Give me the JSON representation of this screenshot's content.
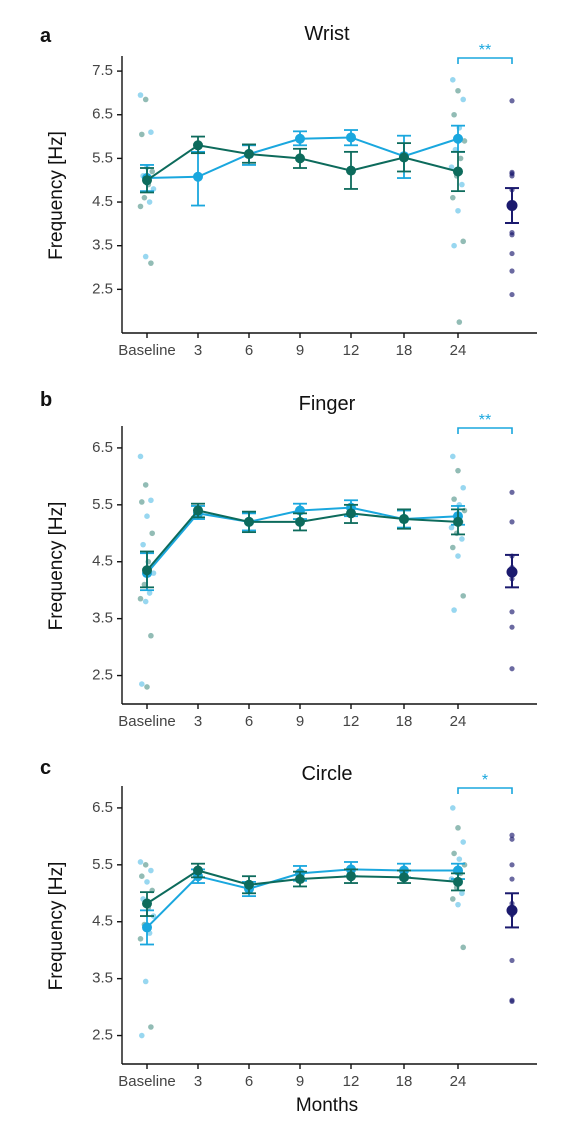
{
  "figure": {
    "xlabel": "Months"
  },
  "colors": {
    "seriesA": "#1aa7de",
    "seriesB": "#0d6b5c",
    "control": "#1b1a6e"
  },
  "chart_data": [
    {
      "letter": "a",
      "title": "Wrist",
      "type": "line",
      "ylabel": "Frequency [Hz]",
      "ylim": [
        1.5,
        7.8
      ],
      "yticks": [
        2.5,
        3.5,
        4.5,
        5.5,
        6.5,
        7.5
      ],
      "categories": [
        "Baseline",
        "3",
        "6",
        "9",
        "12",
        "18",
        "24"
      ],
      "significance": "**",
      "series": [
        {
          "key": "A",
          "color": "#1aa7de",
          "values": [
            5.05,
            5.08,
            5.6,
            5.95,
            5.98,
            5.55,
            5.95
          ],
          "err_low": [
            4.75,
            4.42,
            5.35,
            5.8,
            5.8,
            5.05,
            5.65
          ],
          "err_high": [
            5.35,
            5.65,
            5.8,
            6.12,
            6.15,
            6.02,
            6.25
          ]
        },
        {
          "key": "B",
          "color": "#0d6b5c",
          "values": [
            5.0,
            5.8,
            5.6,
            5.5,
            5.22,
            5.52,
            5.2
          ],
          "err_low": [
            4.72,
            5.62,
            5.4,
            5.28,
            4.8,
            5.2,
            4.75
          ],
          "err_high": [
            5.28,
            6.0,
            5.82,
            5.72,
            5.65,
            5.85,
            5.65
          ]
        }
      ],
      "baseline_points": [
        6.95,
        6.85,
        6.1,
        6.05,
        5.3,
        5.2,
        5.1,
        4.9,
        4.8,
        4.6,
        4.5,
        4.4,
        3.25,
        3.1
      ],
      "final_points": [
        7.3,
        7.05,
        6.85,
        6.5,
        6.2,
        5.9,
        5.7,
        5.5,
        5.3,
        5.1,
        4.9,
        4.6,
        4.3,
        3.6,
        3.5,
        1.75
      ],
      "control": {
        "mean": 4.42,
        "err_low": 4.02,
        "err_high": 4.82,
        "points": [
          6.82,
          5.18,
          5.15,
          5.1,
          4.78,
          3.8,
          3.75,
          3.32,
          2.92,
          2.38
        ]
      }
    },
    {
      "letter": "b",
      "title": "Finger",
      "type": "line",
      "ylabel": "Frequency [Hz]",
      "ylim": [
        2.0,
        6.85
      ],
      "yticks": [
        2.5,
        3.5,
        4.5,
        5.5,
        6.5
      ],
      "categories": [
        "Baseline",
        "3",
        "6",
        "9",
        "12",
        "18",
        "24"
      ],
      "significance": "**",
      "series": [
        {
          "key": "A",
          "color": "#1aa7de",
          "values": [
            4.3,
            5.35,
            5.2,
            5.4,
            5.45,
            5.25,
            5.3
          ],
          "err_low": [
            4.0,
            5.25,
            5.05,
            5.25,
            5.3,
            5.1,
            5.15
          ],
          "err_high": [
            4.65,
            5.48,
            5.35,
            5.52,
            5.58,
            5.4,
            5.48
          ]
        },
        {
          "key": "B",
          "color": "#0d6b5c",
          "values": [
            4.35,
            5.4,
            5.2,
            5.2,
            5.35,
            5.25,
            5.2
          ],
          "err_low": [
            4.05,
            5.28,
            5.02,
            5.05,
            5.18,
            5.08,
            4.98
          ],
          "err_high": [
            4.68,
            5.52,
            5.38,
            5.35,
            5.5,
            5.42,
            5.42
          ]
        }
      ],
      "baseline_points": [
        6.35,
        5.85,
        5.58,
        5.55,
        5.3,
        5.0,
        4.8,
        4.5,
        4.3,
        4.1,
        3.95,
        3.85,
        3.8,
        3.2,
        2.35,
        2.3
      ],
      "final_points": [
        6.35,
        6.1,
        5.8,
        5.6,
        5.5,
        5.4,
        5.3,
        5.2,
        5.1,
        5.0,
        4.9,
        4.75,
        4.6,
        3.9,
        3.65
      ],
      "control": {
        "mean": 4.32,
        "err_low": 4.05,
        "err_high": 4.62,
        "points": [
          5.72,
          5.2,
          4.6,
          4.4,
          4.3,
          4.2,
          3.62,
          3.35,
          2.62
        ]
      }
    },
    {
      "letter": "c",
      "title": "Circle",
      "type": "line",
      "ylabel": "Frequency [Hz]",
      "ylim": [
        2.0,
        6.85
      ],
      "yticks": [
        2.5,
        3.5,
        4.5,
        5.5,
        6.5
      ],
      "categories": [
        "Baseline",
        "3",
        "6",
        "9",
        "12",
        "18",
        "24"
      ],
      "significance": "*",
      "series": [
        {
          "key": "A",
          "color": "#1aa7de",
          "values": [
            4.4,
            5.3,
            5.08,
            5.35,
            5.42,
            5.4,
            5.4
          ],
          "err_low": [
            4.1,
            5.18,
            4.95,
            5.22,
            5.3,
            5.28,
            5.25
          ],
          "err_high": [
            4.7,
            5.42,
            5.2,
            5.48,
            5.55,
            5.52,
            5.52
          ]
        },
        {
          "key": "B",
          "color": "#0d6b5c",
          "values": [
            4.82,
            5.4,
            5.15,
            5.25,
            5.3,
            5.28,
            5.2
          ],
          "err_low": [
            4.6,
            5.28,
            5.0,
            5.12,
            5.18,
            5.18,
            5.05
          ],
          "err_high": [
            5.02,
            5.52,
            5.3,
            5.38,
            5.42,
            5.4,
            5.35
          ]
        }
      ],
      "baseline_points": [
        5.55,
        5.5,
        5.4,
        5.3,
        5.2,
        5.05,
        4.9,
        4.75,
        4.6,
        4.45,
        4.3,
        4.2,
        3.45,
        2.65,
        2.5
      ],
      "final_points": [
        6.5,
        6.15,
        5.9,
        5.7,
        5.6,
        5.5,
        5.4,
        5.35,
        5.25,
        5.1,
        5.0,
        4.9,
        4.8,
        4.05
      ],
      "control": {
        "mean": 4.7,
        "err_low": 4.4,
        "err_high": 5.0,
        "points": [
          6.02,
          5.95,
          5.5,
          5.25,
          4.82,
          4.7,
          4.62,
          3.82,
          3.12,
          3.1
        ]
      }
    }
  ]
}
